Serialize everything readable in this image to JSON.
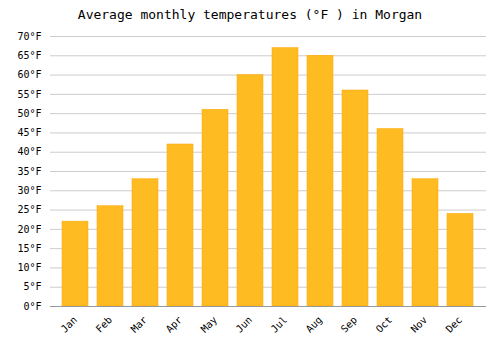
{
  "chart_data": {
    "type": "bar",
    "title": "Average monthly temperatures (°F ) in Morgan",
    "categories": [
      "Jan",
      "Feb",
      "Mar",
      "Apr",
      "May",
      "Jun",
      "Jul",
      "Aug",
      "Sep",
      "Oct",
      "Nov",
      "Dec"
    ],
    "values": [
      22,
      26,
      33,
      42,
      51,
      60,
      67,
      65,
      56,
      46,
      33,
      24
    ],
    "color": "#FFBB22",
    "ylim": [
      0,
      70
    ],
    "yticks": [
      {
        "value": 0,
        "label": "0°F"
      },
      {
        "value": 5,
        "label": "5°F"
      },
      {
        "value": 10,
        "label": "10°F"
      },
      {
        "value": 15,
        "label": "15°F"
      },
      {
        "value": 20,
        "label": "20°F"
      },
      {
        "value": 25,
        "label": "25°F"
      },
      {
        "value": 30,
        "label": "30°F"
      },
      {
        "value": 35,
        "label": "35°F"
      },
      {
        "value": 40,
        "label": "40°F"
      },
      {
        "value": 45,
        "label": "45°F"
      },
      {
        "value": 50,
        "label": "50°F"
      },
      {
        "value": 55,
        "label": "55°F"
      },
      {
        "value": 60,
        "label": "60°F"
      },
      {
        "value": 65,
        "label": "65°F"
      },
      {
        "value": 70,
        "label": "70°F"
      }
    ],
    "grid": true
  }
}
